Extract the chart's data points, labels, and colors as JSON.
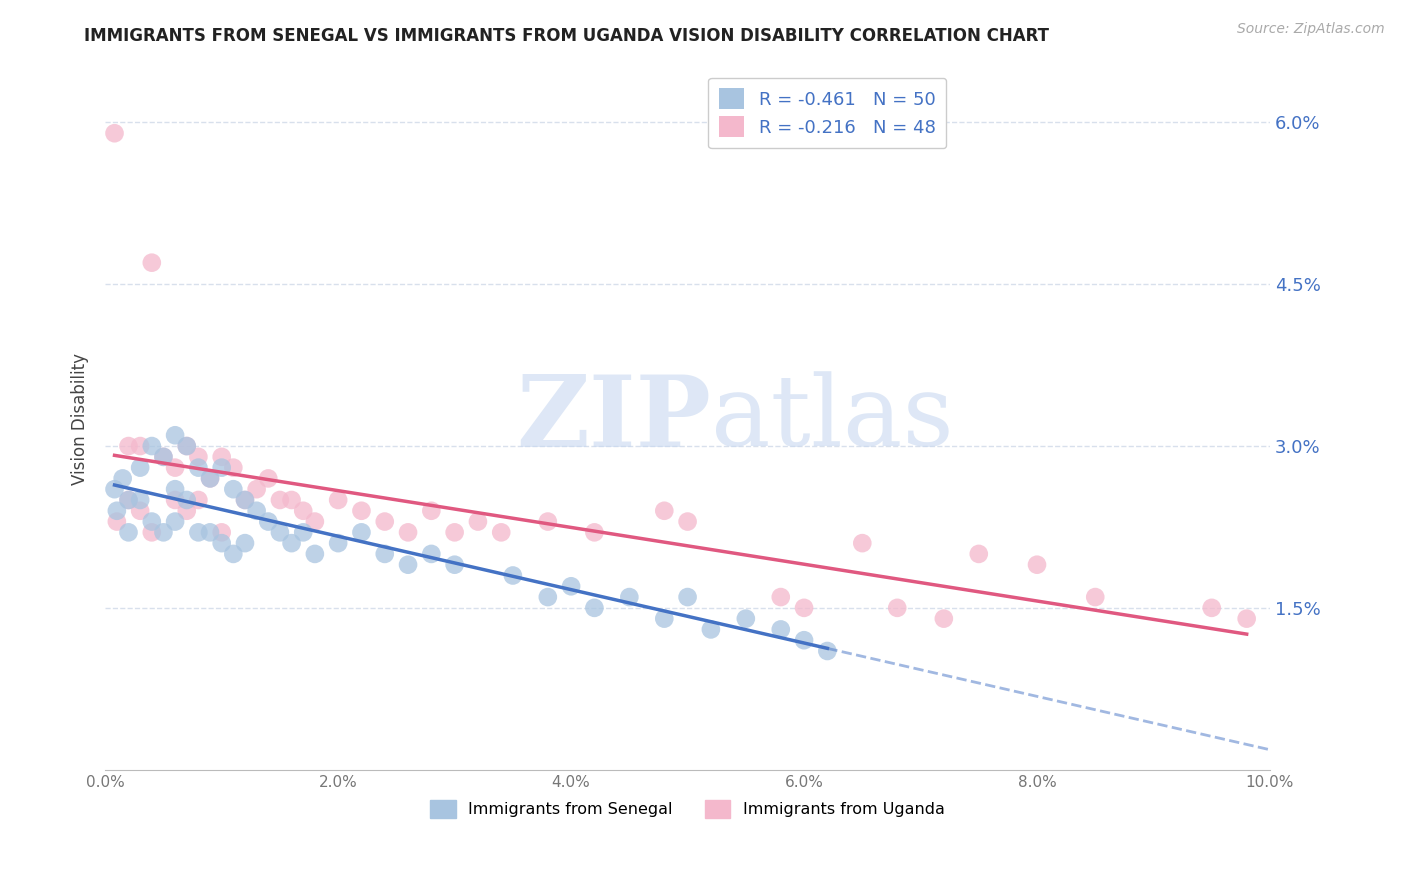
{
  "title": "IMMIGRANTS FROM SENEGAL VS IMMIGRANTS FROM UGANDA VISION DISABILITY CORRELATION CHART",
  "source": "Source: ZipAtlas.com",
  "ylabel": "Vision Disability",
  "xlim": [
    0.0,
    0.1
  ],
  "ylim": [
    0.0,
    0.065
  ],
  "yticks": [
    0.015,
    0.03,
    0.045,
    0.06
  ],
  "ytick_labels": [
    "1.5%",
    "3.0%",
    "4.5%",
    "6.0%"
  ],
  "xticks": [
    0.0,
    0.02,
    0.04,
    0.06,
    0.08,
    0.1
  ],
  "xtick_labels": [
    "0.0%",
    "2.0%",
    "4.0%",
    "6.0%",
    "8.0%",
    "10.0%"
  ],
  "legend_r1": "-0.461",
  "legend_n1": "50",
  "legend_r2": "-0.216",
  "legend_n2": "48",
  "color_senegal": "#a8c4e0",
  "color_uganda": "#f4b8cc",
  "trendline_senegal": "#4472c4",
  "trendline_uganda": "#e05880",
  "label_color": "#4472c4",
  "watermark_zip": "ZIP",
  "watermark_atlas": "atlas",
  "watermark_color": "#c8d8f0",
  "background_color": "#ffffff",
  "grid_color": "#d8e0ec",
  "axis_color": "#4472c4",
  "senegal_x": [
    0.0008,
    0.001,
    0.0015,
    0.002,
    0.002,
    0.003,
    0.003,
    0.004,
    0.004,
    0.005,
    0.005,
    0.006,
    0.006,
    0.006,
    0.007,
    0.007,
    0.008,
    0.008,
    0.009,
    0.009,
    0.01,
    0.01,
    0.011,
    0.011,
    0.012,
    0.012,
    0.013,
    0.014,
    0.015,
    0.016,
    0.017,
    0.018,
    0.02,
    0.022,
    0.024,
    0.026,
    0.028,
    0.03,
    0.035,
    0.038,
    0.04,
    0.042,
    0.045,
    0.048,
    0.05,
    0.052,
    0.055,
    0.058,
    0.06,
    0.062
  ],
  "senegal_y": [
    0.026,
    0.024,
    0.027,
    0.025,
    0.022,
    0.028,
    0.025,
    0.03,
    0.023,
    0.029,
    0.022,
    0.031,
    0.026,
    0.023,
    0.03,
    0.025,
    0.028,
    0.022,
    0.027,
    0.022,
    0.028,
    0.021,
    0.026,
    0.02,
    0.025,
    0.021,
    0.024,
    0.023,
    0.022,
    0.021,
    0.022,
    0.02,
    0.021,
    0.022,
    0.02,
    0.019,
    0.02,
    0.019,
    0.018,
    0.016,
    0.017,
    0.015,
    0.016,
    0.014,
    0.016,
    0.013,
    0.014,
    0.013,
    0.012,
    0.011
  ],
  "uganda_x": [
    0.0008,
    0.001,
    0.002,
    0.002,
    0.003,
    0.003,
    0.004,
    0.004,
    0.005,
    0.006,
    0.006,
    0.007,
    0.007,
    0.008,
    0.008,
    0.009,
    0.01,
    0.01,
    0.011,
    0.012,
    0.013,
    0.014,
    0.015,
    0.016,
    0.017,
    0.018,
    0.02,
    0.022,
    0.024,
    0.026,
    0.028,
    0.03,
    0.032,
    0.034,
    0.038,
    0.042,
    0.048,
    0.05,
    0.058,
    0.06,
    0.065,
    0.068,
    0.072,
    0.075,
    0.08,
    0.085,
    0.095,
    0.098
  ],
  "uganda_y": [
    0.059,
    0.023,
    0.03,
    0.025,
    0.03,
    0.024,
    0.047,
    0.022,
    0.029,
    0.028,
    0.025,
    0.03,
    0.024,
    0.029,
    0.025,
    0.027,
    0.029,
    0.022,
    0.028,
    0.025,
    0.026,
    0.027,
    0.025,
    0.025,
    0.024,
    0.023,
    0.025,
    0.024,
    0.023,
    0.022,
    0.024,
    0.022,
    0.023,
    0.022,
    0.023,
    0.022,
    0.024,
    0.023,
    0.016,
    0.015,
    0.021,
    0.015,
    0.014,
    0.02,
    0.019,
    0.016,
    0.015,
    0.014
  ]
}
